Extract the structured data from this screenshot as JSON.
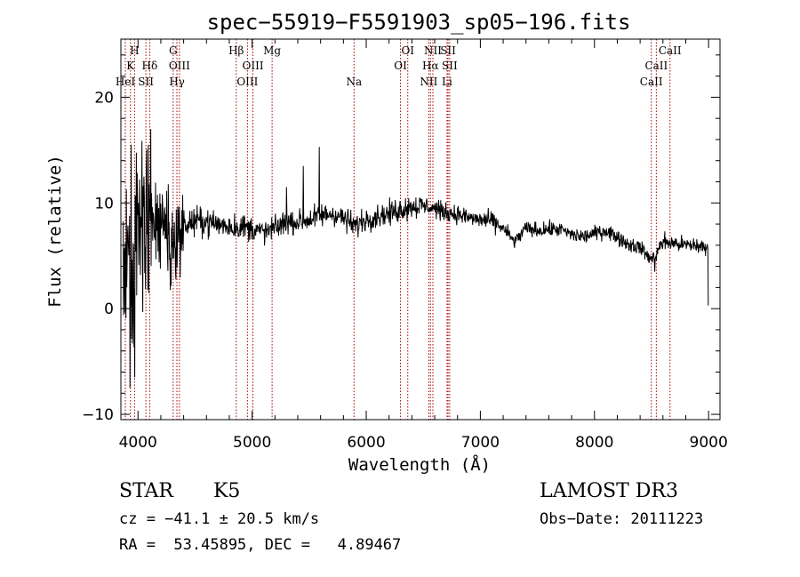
{
  "chart_data": {
    "type": "line",
    "title": "spec−55919−F5591903_sp05−196.fits",
    "xlabel": "Wavelength (Å)",
    "ylabel": "Flux (relative)",
    "xlim": [
      3850,
      9100
    ],
    "ylim": [
      -10.5,
      25.5
    ],
    "xticks": [
      4000,
      5000,
      6000,
      7000,
      8000,
      9000
    ],
    "yticks": [
      -10,
      0,
      10,
      20
    ],
    "lines": [
      {
        "name": "H",
        "wave": 3970,
        "row": 0
      },
      {
        "name": "K",
        "wave": 3934,
        "row": 1
      },
      {
        "name": "HeI",
        "wave": 3889,
        "row": 2
      },
      {
        "name": "SII",
        "wave": 4069,
        "row": 2
      },
      {
        "name": "Hδ",
        "wave": 4102,
        "row": 1
      },
      {
        "name": "G",
        "wave": 4308,
        "row": 0
      },
      {
        "name": "OIII",
        "wave": 4363,
        "row": 1
      },
      {
        "name": "Hγ",
        "wave": 4341,
        "row": 2
      },
      {
        "name": "Hβ",
        "wave": 4861,
        "row": 0
      },
      {
        "name": "OIII",
        "wave": 5007,
        "row": 1
      },
      {
        "name": "OIII",
        "wave": 4959,
        "row": 2
      },
      {
        "name": "Mg",
        "wave": 5175,
        "row": 0
      },
      {
        "name": "Na",
        "wave": 5893,
        "row": 2
      },
      {
        "name": "OI",
        "wave": 6364,
        "row": 0
      },
      {
        "name": "OI",
        "wave": 6300,
        "row": 1
      },
      {
        "name": "NII",
        "wave": 6584,
        "row": 0
      },
      {
        "name": "SII",
        "wave": 6717,
        "row": 0
      },
      {
        "name": "Hα",
        "wave": 6563,
        "row": 1
      },
      {
        "name": "SII",
        "wave": 6731,
        "row": 1
      },
      {
        "name": "NII",
        "wave": 6548,
        "row": 2
      },
      {
        "name": "Li",
        "wave": 6708,
        "row": 2
      },
      {
        "name": "CaII",
        "wave": 8662,
        "row": 0
      },
      {
        "name": "CaII",
        "wave": 8542,
        "row": 1
      },
      {
        "name": "CaII",
        "wave": 8498,
        "row": 2
      }
    ],
    "spectrum_anchors": [
      [
        3870,
        4
      ],
      [
        3900,
        5
      ],
      [
        3950,
        4
      ],
      [
        4000,
        7
      ],
      [
        4050,
        8
      ],
      [
        4100,
        8
      ],
      [
        4150,
        7
      ],
      [
        4200,
        8
      ],
      [
        4250,
        8
      ],
      [
        4300,
        6
      ],
      [
        4350,
        7
      ],
      [
        4400,
        7.8
      ],
      [
        4500,
        8.3
      ],
      [
        4600,
        8.2
      ],
      [
        4700,
        8
      ],
      [
        4800,
        7.8
      ],
      [
        4900,
        7.7
      ],
      [
        5000,
        7.6
      ],
      [
        5100,
        7.2
      ],
      [
        5200,
        7.6
      ],
      [
        5300,
        8.2
      ],
      [
        5400,
        8.2
      ],
      [
        5500,
        8.4
      ],
      [
        5600,
        8.8
      ],
      [
        5700,
        9
      ],
      [
        5800,
        8.6
      ],
      [
        5900,
        7.8
      ],
      [
        6000,
        8.5
      ],
      [
        6100,
        8.8
      ],
      [
        6200,
        9
      ],
      [
        6300,
        9.4
      ],
      [
        6400,
        9.7
      ],
      [
        6500,
        9.7
      ],
      [
        6600,
        9.5
      ],
      [
        6700,
        9.1
      ],
      [
        6800,
        8.9
      ],
      [
        6900,
        8.6
      ],
      [
        7000,
        8.4
      ],
      [
        7100,
        8.3
      ],
      [
        7200,
        7.6
      ],
      [
        7300,
        6.3
      ],
      [
        7400,
        7.6
      ],
      [
        7500,
        7.4
      ],
      [
        7600,
        7.5
      ],
      [
        7700,
        7.5
      ],
      [
        7800,
        7
      ],
      [
        7900,
        6.8
      ],
      [
        8000,
        7.1
      ],
      [
        8100,
        7.4
      ],
      [
        8200,
        6.8
      ],
      [
        8300,
        6.1
      ],
      [
        8400,
        5.8
      ],
      [
        8500,
        4.6
      ],
      [
        8600,
        6.3
      ],
      [
        8700,
        6.2
      ],
      [
        8800,
        6
      ],
      [
        8900,
        6
      ],
      [
        9000,
        5.6
      ]
    ],
    "noise_bands": [
      [
        3850,
        3950,
        8
      ],
      [
        3950,
        4100,
        6
      ],
      [
        4100,
        4400,
        3
      ],
      [
        4400,
        5000,
        0.9
      ],
      [
        5000,
        6500,
        0.8
      ],
      [
        6500,
        7200,
        0.6
      ],
      [
        7200,
        8500,
        0.5
      ],
      [
        8500,
        9000,
        0.55
      ]
    ],
    "spikes": [
      [
        5450,
        13.5
      ],
      [
        5590,
        15.3
      ],
      [
        5300,
        11.5
      ],
      [
        6650,
        8.3
      ],
      [
        8530,
        3.5
      ],
      [
        9000,
        0.3
      ],
      [
        4110,
        17
      ],
      [
        3970,
        -6.5
      ],
      [
        3930,
        -7.5
      ]
    ]
  },
  "info": {
    "object_class": "STAR",
    "subclass": "K5",
    "survey": "LAMOST DR3",
    "redshift_line": "cz = −41.1 ± 20.5 km/s",
    "obs_date": "Obs−Date: 20111223",
    "coords": "RA =  53.45895, DEC =   4.89467"
  },
  "colors": {
    "spectrum": "#000000",
    "line_marker": "#aa0000",
    "axis": "#000000"
  }
}
